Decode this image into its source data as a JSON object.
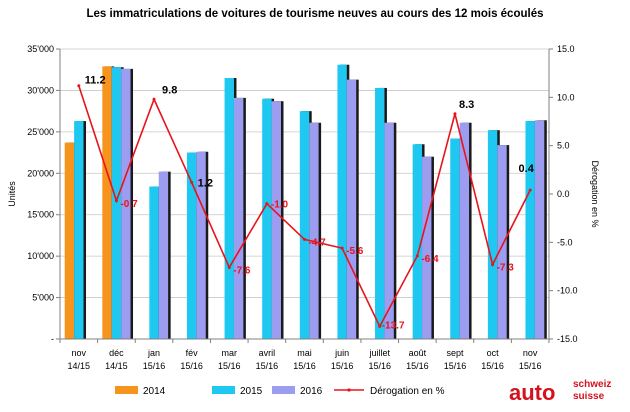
{
  "chart_data": {
    "type": "bar",
    "title": "Les immatriculations de voitures de tourisme neuves au cours des 12 mois écoulés",
    "ylabel": "Unités",
    "y2label": "Dérogation en %",
    "ylim": [
      0,
      35000
    ],
    "y2lim": [
      -15,
      15
    ],
    "yticks": [
      "-",
      "5'000",
      "10'000",
      "15'000",
      "20'000",
      "25'000",
      "30'000",
      "35'000"
    ],
    "y2ticks": [
      "-15.0",
      "-10.0",
      "-5.0",
      "0.0",
      "5.0",
      "10.0",
      "15.0"
    ],
    "categories": [
      [
        "nov",
        "14/15"
      ],
      [
        "déc",
        "14/15"
      ],
      [
        "jan",
        "15/16"
      ],
      [
        "fév",
        "15/16"
      ],
      [
        "mar",
        "15/16"
      ],
      [
        "avril",
        "15/16"
      ],
      [
        "mai",
        "15/16"
      ],
      [
        "juin",
        "15/16"
      ],
      [
        "juillet",
        "15/16"
      ],
      [
        "août",
        "15/16"
      ],
      [
        "sept",
        "15/16"
      ],
      [
        "oct",
        "15/16"
      ],
      [
        "nov",
        "15/16"
      ]
    ],
    "series": [
      {
        "name": "2014",
        "color": "#f7941d",
        "values": [
          23700,
          32900,
          null,
          null,
          null,
          null,
          null,
          null,
          null,
          null,
          null,
          null,
          null
        ]
      },
      {
        "name": "2015",
        "color": "#1ec8f0",
        "values": [
          26300,
          32800,
          18400,
          22500,
          31500,
          29000,
          27500,
          33100,
          30300,
          23500,
          24200,
          25200,
          26300
        ]
      },
      {
        "name": "2016",
        "color": "#9c9cf0",
        "values": [
          null,
          32600,
          20200,
          22600,
          29100,
          28700,
          26100,
          31300,
          26100,
          22000,
          26100,
          23400,
          26400
        ]
      }
    ],
    "line": {
      "name": "Dérogation en %",
      "color": "#e8141b",
      "values": [
        11.2,
        -0.7,
        9.8,
        1.2,
        -7.6,
        -1.0,
        -4.7,
        -5.6,
        -13.7,
        -6.4,
        8.3,
        -7.3,
        0.4
      ],
      "labels": [
        "11.2",
        "-0.7",
        "9.8",
        "1.2",
        "-7.6",
        "-1.0",
        "-4.7",
        "-5.6",
        "-13.7",
        "-6.4",
        "8.3",
        "-7.3",
        "0.4"
      ]
    },
    "legend_position": "bottom"
  },
  "logo": {
    "word": "auto",
    "line1": "schweiz",
    "line2": "suisse"
  }
}
